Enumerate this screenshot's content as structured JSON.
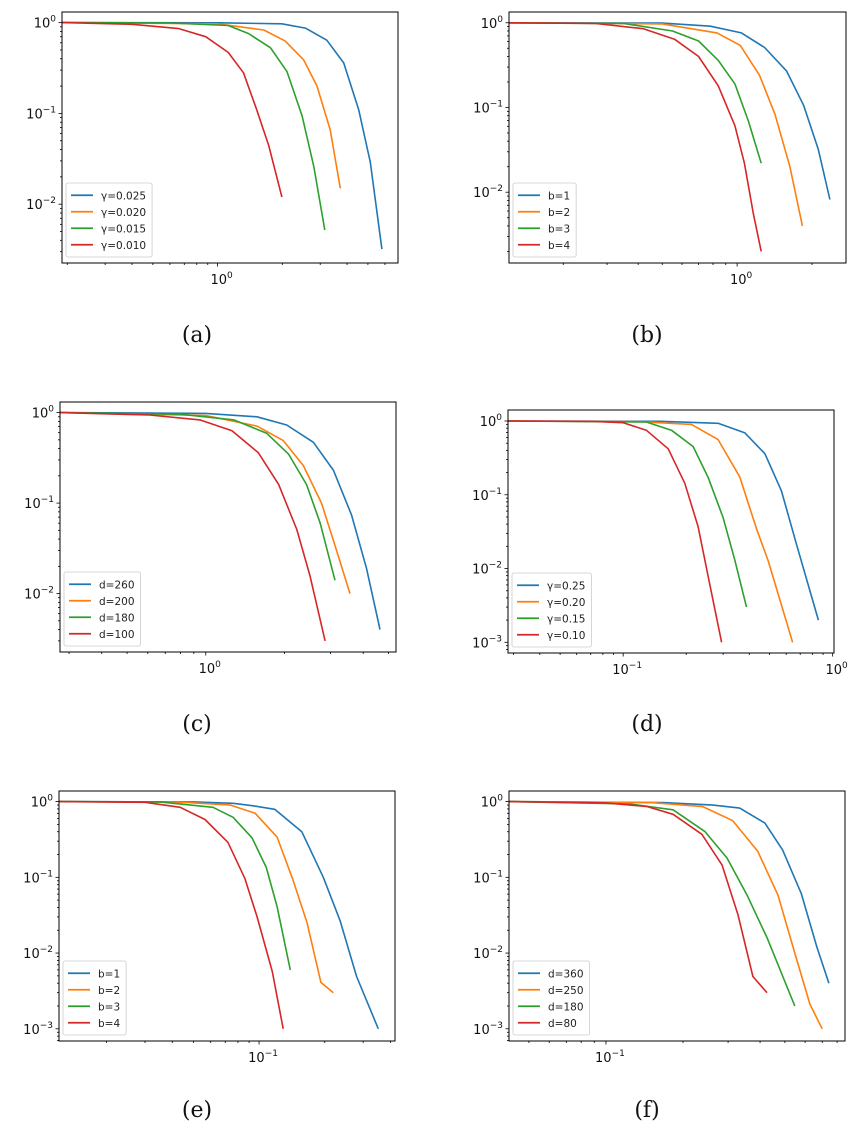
{
  "colors": [
    "#1f77b4",
    "#ff7f0e",
    "#2ca02c",
    "#d62728"
  ],
  "chart_data": [
    {
      "type": "line",
      "caption": "(a)",
      "xscale": "log",
      "yscale": "log",
      "xlim": [
        0.189,
        6.9
      ],
      "ylim": [
        0.00225,
        1.31
      ],
      "xticks": [
        {
          "value": 1,
          "base": "10",
          "exp": "0"
        }
      ],
      "yticks": [
        {
          "value": 1,
          "base": "10",
          "exp": "0"
        },
        {
          "value": 0.1,
          "base": "10",
          "exp": "−1"
        },
        {
          "value": 0.01,
          "base": "10",
          "exp": "−2"
        }
      ],
      "legend_loc": "lower-left",
      "series": [
        {
          "name": "γ=0.025",
          "x": [
            0.189,
            1.0,
            1.99,
            2.56,
            3.22,
            3.86,
            4.53,
            5.13,
            5.81
          ],
          "y": [
            1.0,
            0.995,
            0.97,
            0.87,
            0.64,
            0.36,
            0.11,
            0.029,
            0.0032
          ]
        },
        {
          "name": "γ=0.020",
          "x": [
            0.189,
            1.0,
            1.64,
            2.06,
            2.51,
            2.9,
            3.34,
            3.72
          ],
          "y": [
            1.0,
            0.97,
            0.83,
            0.63,
            0.39,
            0.2,
            0.066,
            0.015
          ]
        },
        {
          "name": "γ=0.015",
          "x": [
            0.189,
            0.6,
            1.12,
            1.39,
            1.76,
            2.1,
            2.47,
            2.8,
            3.15
          ],
          "y": [
            1.0,
            0.99,
            0.93,
            0.76,
            0.53,
            0.29,
            0.094,
            0.026,
            0.0052
          ]
        },
        {
          "name": "γ=0.010",
          "x": [
            0.189,
            0.4,
            0.66,
            0.88,
            1.12,
            1.32,
            1.52,
            1.73,
            1.99
          ],
          "y": [
            1.0,
            0.96,
            0.86,
            0.7,
            0.47,
            0.28,
            0.11,
            0.044,
            0.012
          ]
        }
      ]
    },
    {
      "type": "line",
      "caption": "(b)",
      "xscale": "log",
      "yscale": "log",
      "xlim": [
        0.121,
        2.74
      ],
      "ylim": [
        0.00146,
        1.34
      ],
      "xticks": [
        {
          "value": 1,
          "base": "10",
          "exp": "0"
        }
      ],
      "yticks": [
        {
          "value": 1,
          "base": "10",
          "exp": "0"
        },
        {
          "value": 0.1,
          "base": "10",
          "exp": "−1"
        },
        {
          "value": 0.01,
          "base": "10",
          "exp": "−2"
        }
      ],
      "legend_loc": "lower-left",
      "series": [
        {
          "name": "b=1",
          "x": [
            0.121,
            0.5,
            0.78,
            1.04,
            1.29,
            1.58,
            1.85,
            2.12,
            2.36
          ],
          "y": [
            1.0,
            0.99,
            0.91,
            0.76,
            0.51,
            0.27,
            0.106,
            0.032,
            0.0082
          ]
        },
        {
          "name": "b=2",
          "x": [
            0.121,
            0.5,
            0.83,
            1.03,
            1.23,
            1.42,
            1.63,
            1.83
          ],
          "y": [
            1.0,
            0.97,
            0.76,
            0.54,
            0.24,
            0.083,
            0.02,
            0.004
          ]
        },
        {
          "name": "b=3",
          "x": [
            0.121,
            0.35,
            0.55,
            0.7,
            0.84,
            0.98,
            1.11,
            1.25
          ],
          "y": [
            1.0,
            0.98,
            0.8,
            0.61,
            0.36,
            0.19,
            0.069,
            0.022
          ]
        },
        {
          "name": "b=4",
          "x": [
            0.121,
            0.27,
            0.42,
            0.56,
            0.7,
            0.84,
            0.98,
            1.07,
            1.16,
            1.25
          ],
          "y": [
            1.0,
            0.98,
            0.85,
            0.64,
            0.4,
            0.18,
            0.061,
            0.022,
            0.0057,
            0.002
          ]
        }
      ]
    },
    {
      "type": "line",
      "caption": "(c)",
      "xscale": "log",
      "yscale": "log",
      "xlim": [
        0.277,
        5.34
      ],
      "ylim": [
        0.00226,
        1.31
      ],
      "xticks": [
        {
          "value": 1,
          "base": "10",
          "exp": "0"
        }
      ],
      "yticks": [
        {
          "value": 1,
          "base": "10",
          "exp": "0"
        },
        {
          "value": 0.1,
          "base": "10",
          "exp": "−1"
        },
        {
          "value": 0.01,
          "base": "10",
          "exp": "−2"
        }
      ],
      "legend_loc": "lower-left",
      "series": [
        {
          "name": "d=260",
          "x": [
            0.277,
            1.0,
            1.57,
            2.04,
            2.58,
            3.08,
            3.61,
            4.12,
            4.64
          ],
          "y": [
            1.0,
            0.98,
            0.9,
            0.73,
            0.47,
            0.23,
            0.074,
            0.019,
            0.004
          ]
        },
        {
          "name": "d=200",
          "x": [
            0.277,
            1.0,
            1.57,
            1.98,
            2.36,
            2.77,
            3.12,
            3.56
          ],
          "y": [
            1.0,
            0.93,
            0.71,
            0.49,
            0.26,
            0.1,
            0.034,
            0.01
          ]
        },
        {
          "name": "d=180",
          "x": [
            0.277,
            0.8,
            1.28,
            1.71,
            2.07,
            2.43,
            2.74,
            3.12
          ],
          "y": [
            1.0,
            0.96,
            0.83,
            0.59,
            0.35,
            0.16,
            0.06,
            0.014
          ]
        },
        {
          "name": "d=100",
          "x": [
            0.277,
            0.61,
            0.95,
            1.26,
            1.59,
            1.9,
            2.23,
            2.5,
            2.86
          ],
          "y": [
            1.0,
            0.94,
            0.83,
            0.63,
            0.36,
            0.16,
            0.051,
            0.016,
            0.003
          ]
        }
      ]
    },
    {
      "type": "line",
      "caption": "(d)",
      "xscale": "log",
      "yscale": "log",
      "xlim": [
        0.0282,
        1.015
      ],
      "ylim": [
        0.000716,
        1.41
      ],
      "xticks": [
        {
          "value": 0.1,
          "base": "10",
          "exp": "−1"
        },
        {
          "value": 1,
          "base": "10",
          "exp": "0"
        }
      ],
      "yticks": [
        {
          "value": 1,
          "base": "10",
          "exp": "0"
        },
        {
          "value": 0.1,
          "base": "10",
          "exp": "−1"
        },
        {
          "value": 0.01,
          "base": "10",
          "exp": "−2"
        },
        {
          "value": 0.001,
          "base": "10",
          "exp": "−3"
        }
      ],
      "legend_loc": "lower-left",
      "series": [
        {
          "name": "γ=0.25",
          "x": [
            0.0282,
            0.15,
            0.284,
            0.381,
            0.475,
            0.57,
            0.67,
            0.855
          ],
          "y": [
            1.0,
            0.99,
            0.93,
            0.69,
            0.36,
            0.112,
            0.022,
            0.002
          ]
        },
        {
          "name": "γ=0.20",
          "x": [
            0.0282,
            0.12,
            0.212,
            0.284,
            0.36,
            0.434,
            0.493,
            0.644
          ],
          "y": [
            1.0,
            0.98,
            0.9,
            0.56,
            0.175,
            0.034,
            0.0126,
            0.001
          ]
        },
        {
          "name": "γ=0.15",
          "x": [
            0.0282,
            0.129,
            0.17,
            0.216,
            0.255,
            0.3,
            0.341,
            0.388
          ],
          "y": [
            1.0,
            0.97,
            0.75,
            0.45,
            0.17,
            0.049,
            0.013,
            0.003
          ]
        },
        {
          "name": "γ=0.10",
          "x": [
            0.0282,
            0.07,
            0.1,
            0.129,
            0.164,
            0.197,
            0.228,
            0.26,
            0.295
          ],
          "y": [
            1.0,
            0.99,
            0.95,
            0.75,
            0.42,
            0.143,
            0.037,
            0.0058,
            0.001
          ]
        }
      ]
    },
    {
      "type": "line",
      "caption": "(e)",
      "xscale": "log",
      "yscale": "log",
      "xlim": [
        0.0121,
        0.42
      ],
      "ylim": [
        0.00069,
        1.38
      ],
      "xticks": [
        {
          "value": 0.1,
          "base": "10",
          "exp": "−1"
        }
      ],
      "yticks": [
        {
          "value": 1,
          "base": "10",
          "exp": "0"
        },
        {
          "value": 0.1,
          "base": "10",
          "exp": "−1"
        },
        {
          "value": 0.01,
          "base": "10",
          "exp": "−2"
        },
        {
          "value": 0.001,
          "base": "10",
          "exp": "−3"
        }
      ],
      "legend_loc": "lower-left",
      "series": [
        {
          "name": "b=1",
          "x": [
            0.0121,
            0.05,
            0.076,
            0.094,
            0.118,
            0.157,
            0.197,
            0.235,
            0.28,
            0.352
          ],
          "y": [
            1.0,
            0.99,
            0.95,
            0.88,
            0.79,
            0.4,
            0.1,
            0.027,
            0.0049,
            0.001
          ]
        },
        {
          "name": "b=2",
          "x": [
            0.0121,
            0.045,
            0.074,
            0.096,
            0.121,
            0.143,
            0.166,
            0.192,
            0.219
          ],
          "y": [
            1.0,
            0.98,
            0.9,
            0.7,
            0.34,
            0.093,
            0.025,
            0.0041,
            0.003
          ]
        },
        {
          "name": "b=3",
          "x": [
            0.0121,
            0.035,
            0.0615,
            0.076,
            0.093,
            0.108,
            0.121,
            0.139
          ],
          "y": [
            1.0,
            0.99,
            0.84,
            0.62,
            0.33,
            0.135,
            0.041,
            0.006
          ]
        },
        {
          "name": "b=4",
          "x": [
            0.0121,
            0.03,
            0.0435,
            0.0565,
            0.072,
            0.086,
            0.098,
            0.115,
            0.129
          ],
          "y": [
            1.0,
            0.98,
            0.84,
            0.58,
            0.29,
            0.097,
            0.03,
            0.0057,
            0.001
          ]
        }
      ]
    },
    {
      "type": "line",
      "caption": "(f)",
      "xscale": "log",
      "yscale": "log",
      "xlim": [
        0.0418,
        0.859
      ],
      "ylim": [
        0.00069,
        1.38
      ],
      "xticks": [
        {
          "value": 0.1,
          "base": "10",
          "exp": "−1"
        }
      ],
      "yticks": [
        {
          "value": 1,
          "base": "10",
          "exp": "0"
        },
        {
          "value": 0.1,
          "base": "10",
          "exp": "−1"
        },
        {
          "value": 0.01,
          "base": "10",
          "exp": "−2"
        },
        {
          "value": 0.001,
          "base": "10",
          "exp": "−3"
        }
      ],
      "legend_loc": "lower-left",
      "series": [
        {
          "name": "d=360",
          "x": [
            0.0418,
            0.167,
            0.262,
            0.333,
            0.418,
            0.49,
            0.58,
            0.667,
            0.743
          ],
          "y": [
            1.0,
            0.97,
            0.9,
            0.82,
            0.52,
            0.23,
            0.061,
            0.012,
            0.004
          ]
        },
        {
          "name": "d=250",
          "x": [
            0.0418,
            0.15,
            0.239,
            0.313,
            0.392,
            0.47,
            0.547,
            0.627,
            0.7
          ],
          "y": [
            1.0,
            0.97,
            0.86,
            0.56,
            0.22,
            0.058,
            0.01,
            0.0021,
            0.001
          ]
        },
        {
          "name": "d=180",
          "x": [
            0.0418,
            0.124,
            0.183,
            0.244,
            0.297,
            0.356,
            0.426,
            0.547
          ],
          "y": [
            1.0,
            0.93,
            0.78,
            0.4,
            0.18,
            0.058,
            0.016,
            0.002
          ]
        },
        {
          "name": "d=80",
          "x": [
            0.0418,
            0.1,
            0.145,
            0.183,
            0.237,
            0.284,
            0.328,
            0.375,
            0.426
          ],
          "y": [
            1.0,
            0.96,
            0.86,
            0.68,
            0.37,
            0.146,
            0.032,
            0.0049,
            0.003
          ]
        }
      ]
    }
  ]
}
